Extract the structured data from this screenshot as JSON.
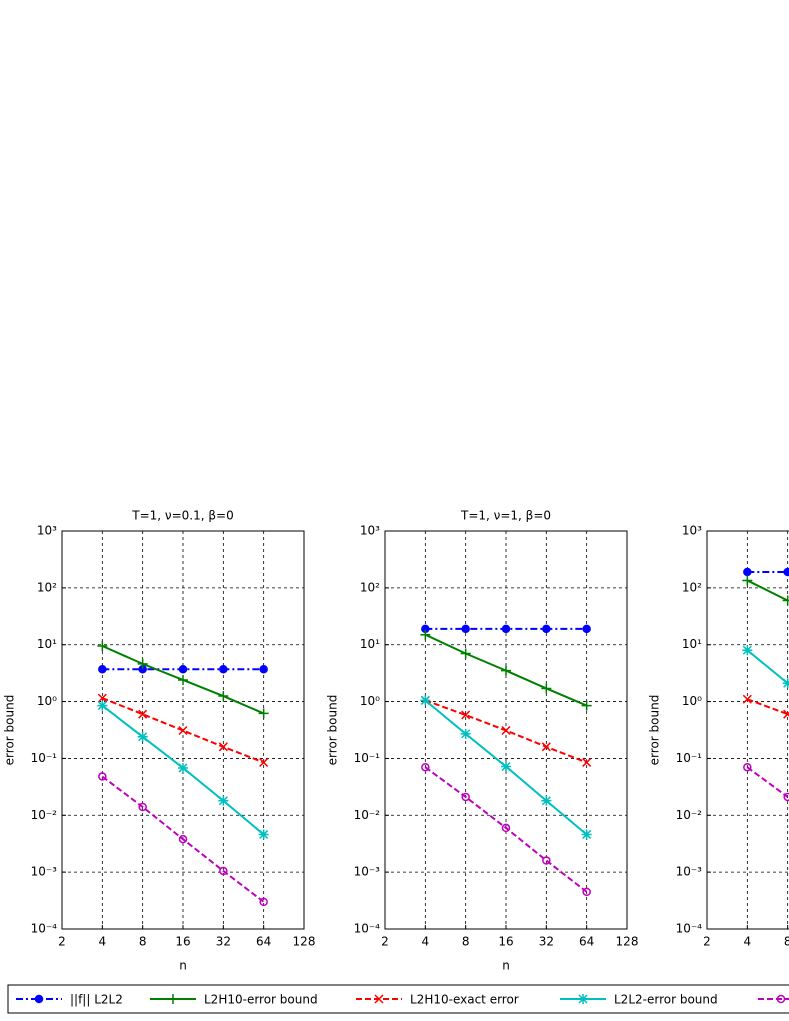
{
  "chart_data": [
    {
      "type": "line",
      "title": "T=1, ν=0.1, β=0",
      "xlabel": "n",
      "ylabel": "error bound",
      "xscale": "log",
      "yscale": "log",
      "grid": true,
      "legend": "bottom",
      "x": [
        4,
        8,
        16,
        32,
        64
      ],
      "xlim": [
        2,
        128
      ],
      "xticks": [
        2,
        4,
        8,
        16,
        32,
        64,
        128
      ],
      "ylim": [
        0.0001,
        1000
      ],
      "yticks": [
        {
          "value": 0.0001,
          "label": "10⁻⁴"
        },
        {
          "value": 0.001,
          "label": "10⁻³"
        },
        {
          "value": 0.01,
          "label": "10⁻²"
        },
        {
          "value": 0.1,
          "label": "10⁻¹"
        },
        {
          "value": 1,
          "label": "10⁰"
        },
        {
          "value": 10,
          "label": "10¹"
        },
        {
          "value": 100,
          "label": "10²"
        },
        {
          "value": 1000,
          "label": "10³"
        }
      ],
      "series": [
        {
          "name": "||f|| L2L2",
          "color": "#0000ff",
          "linestyle": "dashdot",
          "marker": "filled-circle",
          "values": [
            3.7,
            3.7,
            3.7,
            3.7,
            3.7
          ]
        },
        {
          "name": "L2H10-error bound",
          "color": "#007f00",
          "linestyle": "solid",
          "marker": "plus",
          "values": [
            9.5,
            4.6,
            2.4,
            1.25,
            0.62
          ]
        },
        {
          "name": "L2H10-exact error",
          "color": "#ff0000",
          "linestyle": "dashed",
          "marker": "x",
          "values": [
            1.15,
            0.6,
            0.31,
            0.16,
            0.085
          ]
        },
        {
          "name": "L2L2-error bound",
          "color": "#00bfbf",
          "linestyle": "solid",
          "marker": "star",
          "values": [
            0.85,
            0.24,
            0.068,
            0.018,
            0.0046
          ]
        },
        {
          "color": "#bf00bf",
          "linestyle": "dashed",
          "marker": "circle",
          "values": [
            0.048,
            0.014,
            0.0038,
            0.00105,
            0.0003
          ]
        }
      ]
    },
    {
      "type": "line",
      "title": "T=1, ν=1, β=0",
      "xlabel": "n",
      "ylabel": "error bound",
      "xscale": "log",
      "yscale": "log",
      "grid": true,
      "x": [
        4,
        8,
        16,
        32,
        64
      ],
      "xlim": [
        2,
        128
      ],
      "xticks": [
        2,
        4,
        8,
        16,
        32,
        64,
        128
      ],
      "ylim": [
        0.0001,
        1000
      ],
      "yticks": [
        {
          "value": 0.0001,
          "label": "10⁻⁴"
        },
        {
          "value": 0.001,
          "label": "10⁻³"
        },
        {
          "value": 0.01,
          "label": "10⁻²"
        },
        {
          "value": 0.1,
          "label": "10⁻¹"
        },
        {
          "value": 1,
          "label": "10⁰"
        },
        {
          "value": 10,
          "label": "10¹"
        },
        {
          "value": 100,
          "label": "10²"
        },
        {
          "value": 1000,
          "label": "10³"
        }
      ],
      "series": [
        {
          "color": "#0000ff",
          "linestyle": "dashdot",
          "marker": "filled-circle",
          "values": [
            19,
            19,
            19,
            19,
            19
          ]
        },
        {
          "color": "#007f00",
          "linestyle": "solid",
          "marker": "plus",
          "values": [
            15,
            7,
            3.5,
            1.7,
            0.85
          ]
        },
        {
          "color": "#ff0000",
          "linestyle": "dashed",
          "marker": "x",
          "values": [
            1.05,
            0.58,
            0.31,
            0.16,
            0.085
          ]
        },
        {
          "color": "#00bfbf",
          "linestyle": "solid",
          "marker": "star",
          "values": [
            1.05,
            0.27,
            0.072,
            0.018,
            0.0046
          ]
        },
        {
          "color": "#bf00bf",
          "linestyle": "dashed",
          "marker": "circle",
          "values": [
            0.07,
            0.021,
            0.006,
            0.0016,
            0.00045
          ]
        }
      ]
    },
    {
      "type": "line",
      "title": "T=",
      "ylabel": "error bound",
      "xscale": "log",
      "yscale": "log",
      "grid": true,
      "x": [
        4,
        8
      ],
      "xlim": [
        2,
        128
      ],
      "xticks": [
        2,
        4,
        8
      ],
      "ylim": [
        0.0001,
        1000
      ],
      "yticks": [
        {
          "value": 0.0001,
          "label": "10⁻⁴"
        },
        {
          "value": 0.001,
          "label": "10⁻³"
        },
        {
          "value": 0.01,
          "label": "10⁻²"
        },
        {
          "value": 0.1,
          "label": "10⁻¹"
        },
        {
          "value": 1,
          "label": "10⁰"
        },
        {
          "value": 10,
          "label": "10¹"
        },
        {
          "value": 100,
          "label": "10²"
        },
        {
          "value": 1000,
          "label": "10³"
        }
      ],
      "series": [
        {
          "color": "#0000ff",
          "linestyle": "dashdot",
          "marker": "filled-circle",
          "values": [
            190,
            190
          ]
        },
        {
          "color": "#007f00",
          "linestyle": "solid",
          "marker": "plus",
          "values": [
            135,
            60
          ]
        },
        {
          "color": "#ff0000",
          "linestyle": "dashed",
          "marker": "x",
          "values": [
            1.1,
            0.6
          ]
        },
        {
          "color": "#00bfbf",
          "linestyle": "solid",
          "marker": "star",
          "values": [
            8,
            2.1
          ]
        },
        {
          "color": "#bf00bf",
          "linestyle": "dashed",
          "marker": "circle",
          "values": [
            0.07,
            0.021
          ]
        }
      ]
    }
  ]
}
